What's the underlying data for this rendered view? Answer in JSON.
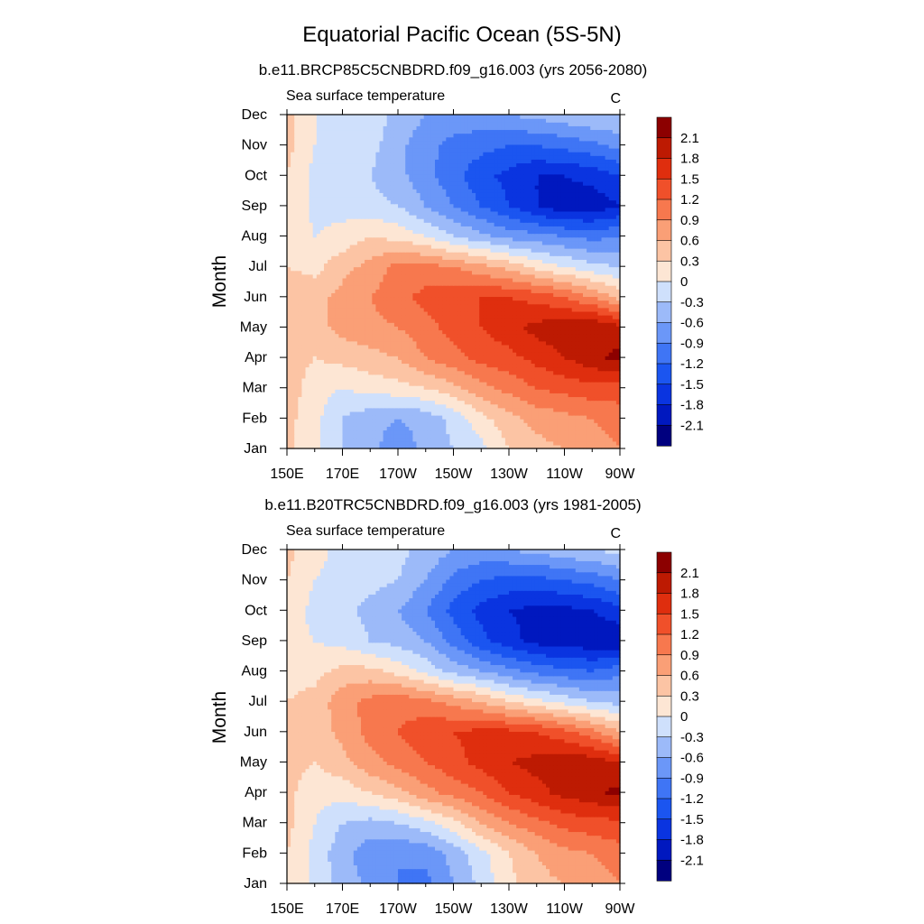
{
  "title": "Equatorial Pacific Ocean (5S-5N)",
  "panels_subtitle_left": "Sea surface temperature",
  "panels_units": "C",
  "ylabel": "Month",
  "colorscale": {
    "levels": [
      -2.1,
      -1.8,
      -1.5,
      -1.2,
      -0.9,
      -0.6,
      -0.3,
      0,
      0.3,
      0.6,
      0.9,
      1.2,
      1.5,
      1.8,
      2.1
    ],
    "level_labels": [
      "-2.1",
      "-1.8",
      "-1.5",
      "-1.2",
      "-0.9",
      "-0.6",
      "-0.3",
      "0",
      "0.3",
      "0.6",
      "0.9",
      "1.2",
      "1.5",
      "1.8",
      "2.1"
    ],
    "colors": [
      "#00007f",
      "#0018bf",
      "#0a34e0",
      "#1b55f0",
      "#3f75f5",
      "#6b97f8",
      "#9cbaf9",
      "#cfe0fc",
      "#fde6d4",
      "#fcc4a4",
      "#fa9f76",
      "#f7784e",
      "#f0502a",
      "#df2e0e",
      "#bd1a02",
      "#8c0000"
    ]
  },
  "chart_data": [
    {
      "type": "heatmap",
      "title": "b.e11.BRCP85C5CNBDRD.f09_g16.003 (yrs 2056-2080)",
      "subtitle": "Sea surface temperature",
      "units": "C",
      "ylabel": "Month",
      "x": [
        150,
        160,
        170,
        180,
        190,
        200,
        210,
        220,
        230,
        240,
        250,
        260,
        270
      ],
      "xticks": [
        150,
        170,
        190,
        210,
        230,
        250,
        270
      ],
      "xtick_labels": [
        "150E",
        "170E",
        "170W",
        "150W",
        "130W",
        "110W",
        "90W"
      ],
      "y": [
        "Jan",
        "Feb",
        "Mar",
        "Apr",
        "May",
        "Jun",
        "Jul",
        "Aug",
        "Sep",
        "Oct",
        "Nov",
        "Dec"
      ],
      "z": [
        [
          0.4,
          0.1,
          -0.3,
          -0.5,
          -0.8,
          -0.5,
          -0.3,
          -0.1,
          0.3,
          0.5,
          0.6,
          0.7,
          0.9
        ],
        [
          0.4,
          0.1,
          -0.3,
          -0.5,
          -0.6,
          -0.5,
          -0.2,
          0.2,
          0.5,
          0.7,
          0.8,
          0.9,
          1.1
        ],
        [
          0.5,
          0.1,
          0.0,
          0.1,
          0.2,
          0.3,
          0.5,
          0.8,
          1.0,
          1.2,
          1.3,
          1.4,
          1.3
        ],
        [
          0.5,
          0.3,
          0.4,
          0.5,
          0.6,
          0.9,
          1.1,
          1.3,
          1.4,
          1.6,
          1.8,
          2.0,
          2.2
        ],
        [
          0.5,
          0.5,
          0.7,
          0.8,
          0.9,
          1.1,
          1.3,
          1.5,
          1.7,
          1.9,
          2.0,
          2.1,
          1.9
        ],
        [
          0.5,
          0.5,
          0.7,
          0.9,
          1.1,
          1.3,
          1.4,
          1.5,
          1.5,
          1.4,
          1.2,
          0.9,
          0.5
        ],
        [
          0.3,
          0.2,
          0.5,
          0.7,
          1.0,
          1.0,
          0.9,
          0.7,
          0.5,
          0.2,
          0.0,
          -0.2,
          -0.3
        ],
        [
          0.3,
          0.0,
          0.1,
          0.3,
          0.2,
          0.0,
          -0.3,
          -0.5,
          -0.7,
          -0.8,
          -0.9,
          -1.0,
          -0.9
        ],
        [
          0.3,
          -0.1,
          -0.1,
          -0.2,
          -0.3,
          -0.6,
          -0.9,
          -1.2,
          -1.5,
          -1.8,
          -2.0,
          -2.0,
          -1.8
        ],
        [
          0.3,
          -0.1,
          -0.2,
          -0.3,
          -0.5,
          -0.8,
          -1.1,
          -1.4,
          -1.6,
          -1.8,
          -1.8,
          -1.7,
          -1.5
        ],
        [
          0.4,
          0.0,
          -0.1,
          -0.2,
          -0.5,
          -0.8,
          -1.0,
          -1.1,
          -1.2,
          -1.2,
          -1.1,
          -1.0,
          -0.8
        ],
        [
          0.4,
          0.0,
          -0.1,
          -0.1,
          -0.4,
          -0.6,
          -0.7,
          -0.7,
          -0.6,
          -0.5,
          -0.4,
          -0.3,
          -0.3
        ]
      ]
    },
    {
      "type": "heatmap",
      "title": "b.e11.B20TRC5CNBDRD.f09_g16.003 (yrs 1981-2005)",
      "subtitle": "Sea surface temperature",
      "units": "C",
      "ylabel": "Month",
      "x": [
        150,
        160,
        170,
        180,
        190,
        200,
        210,
        220,
        230,
        240,
        250,
        260,
        270
      ],
      "xticks": [
        150,
        170,
        190,
        210,
        230,
        250,
        270
      ],
      "xtick_labels": [
        "150E",
        "170E",
        "170W",
        "150W",
        "130W",
        "110W",
        "90W"
      ],
      "y": [
        "Jan",
        "Feb",
        "Mar",
        "Apr",
        "May",
        "Jun",
        "Jul",
        "Aug",
        "Sep",
        "Oct",
        "Nov",
        "Dec"
      ],
      "z": [
        [
          0.3,
          -0.1,
          -0.4,
          -0.7,
          -0.9,
          -1.0,
          -0.6,
          -0.2,
          0.2,
          0.5,
          0.6,
          0.7,
          0.9
        ],
        [
          0.3,
          -0.1,
          -0.5,
          -0.8,
          -0.9,
          -0.8,
          -0.5,
          -0.1,
          0.3,
          0.6,
          0.8,
          0.9,
          1.1
        ],
        [
          0.4,
          0.0,
          -0.3,
          -0.4,
          -0.3,
          -0.1,
          0.2,
          0.6,
          0.9,
          1.1,
          1.3,
          1.4,
          1.4
        ],
        [
          0.4,
          0.1,
          0.1,
          0.3,
          0.5,
          0.8,
          1.0,
          1.2,
          1.5,
          1.7,
          1.9,
          2.0,
          2.2
        ],
        [
          0.4,
          0.3,
          0.5,
          0.8,
          1.0,
          1.2,
          1.4,
          1.6,
          1.8,
          1.9,
          2.0,
          2.0,
          1.8
        ],
        [
          0.4,
          0.4,
          0.7,
          1.0,
          1.2,
          1.4,
          1.5,
          1.6,
          1.6,
          1.5,
          1.3,
          1.0,
          0.6
        ],
        [
          0.3,
          0.4,
          0.8,
          1.0,
          1.1,
          1.0,
          0.8,
          0.6,
          0.3,
          0.1,
          -0.1,
          -0.3,
          -0.4
        ],
        [
          0.2,
          0.2,
          0.4,
          0.4,
          0.2,
          -0.1,
          -0.4,
          -0.6,
          -0.8,
          -1.0,
          -1.1,
          -1.2,
          -1.0
        ],
        [
          0.1,
          0.0,
          -0.1,
          -0.3,
          -0.4,
          -0.6,
          -1.0,
          -1.4,
          -1.7,
          -1.9,
          -2.0,
          -2.0,
          -2.1
        ],
        [
          0.2,
          -0.1,
          -0.2,
          -0.4,
          -0.6,
          -0.9,
          -1.3,
          -1.6,
          -1.8,
          -1.9,
          -1.9,
          -1.8,
          -1.6
        ],
        [
          0.3,
          0.0,
          -0.1,
          -0.2,
          -0.3,
          -0.6,
          -1.0,
          -1.2,
          -1.3,
          -1.3,
          -1.2,
          -1.1,
          -0.9
        ],
        [
          0.4,
          0.1,
          -0.1,
          -0.1,
          -0.2,
          -0.4,
          -0.6,
          -0.7,
          -0.6,
          -0.5,
          -0.4,
          -0.3,
          -0.2
        ]
      ]
    }
  ]
}
